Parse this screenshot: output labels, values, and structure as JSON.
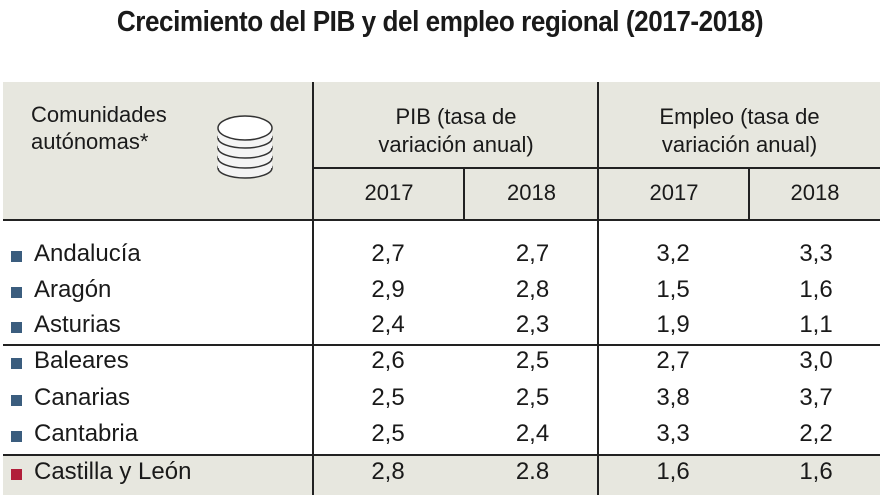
{
  "title": "Crecimiento del PIB y del empleo regional (2017-2018)",
  "header": {
    "region_label_1": "Comunidades",
    "region_label_2": "autónomas*",
    "pib_1": "PIB (tasa de",
    "pib_2": "variación anual)",
    "emp_1": "Empleo (tasa de",
    "emp_2": "variación anual)",
    "years": [
      "2017",
      "2018",
      "2017",
      "2018"
    ]
  },
  "colors": {
    "default_marker": "#3b5d7e",
    "highlight_marker": "#b11f3a",
    "header_bg": "#e7e7df"
  },
  "rows": [
    {
      "name": "Andalucía",
      "values": [
        "2,7",
        "2,7",
        "3,2",
        "3,3"
      ]
    },
    {
      "name": "Aragón",
      "values": [
        "2,9",
        "2,8",
        "1,5",
        "1,6"
      ]
    },
    {
      "name": "Asturias",
      "values": [
        "2,4",
        "2,3",
        "1,9",
        "1,1"
      ]
    },
    {
      "name": "Baleares",
      "values": [
        "2,6",
        "2,5",
        "2,7",
        "3,0"
      ]
    },
    {
      "name": "Canarias",
      "values": [
        "2,5",
        "2,5",
        "3,8",
        "3,7"
      ]
    },
    {
      "name": "Cantabria",
      "values": [
        "2,5",
        "2,4",
        "3,3",
        "2,2"
      ]
    },
    {
      "name": "Castilla y León",
      "values": [
        "2,8",
        "2.8",
        "1,6",
        "1,6"
      ],
      "highlight": true
    }
  ]
}
